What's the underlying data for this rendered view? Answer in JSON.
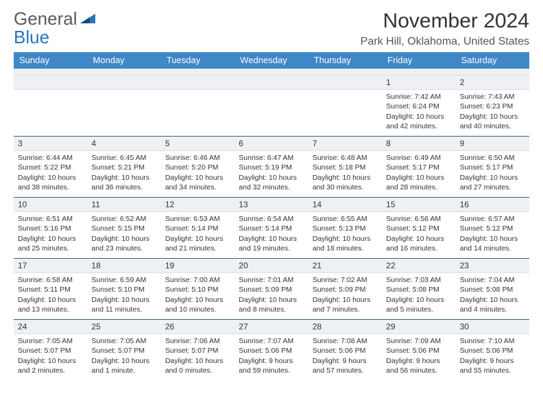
{
  "logo": {
    "line1": "General",
    "line2": "Blue"
  },
  "header": {
    "month_title": "November 2024",
    "location": "Park Hill, Oklahoma, United States"
  },
  "colors": {
    "headerBlue": "#3f87c7",
    "band": "#eef1f3",
    "text": "#333333",
    "logoBlue": "#2a74bd",
    "darkRule": "#3f5a77"
  },
  "dayNames": [
    "Sunday",
    "Monday",
    "Tuesday",
    "Wednesday",
    "Thursday",
    "Friday",
    "Saturday"
  ],
  "weeks": [
    [
      {
        "n": "",
        "sunrise": "",
        "sunset": "",
        "daylight": ""
      },
      {
        "n": "",
        "sunrise": "",
        "sunset": "",
        "daylight": ""
      },
      {
        "n": "",
        "sunrise": "",
        "sunset": "",
        "daylight": ""
      },
      {
        "n": "",
        "sunrise": "",
        "sunset": "",
        "daylight": ""
      },
      {
        "n": "",
        "sunrise": "",
        "sunset": "",
        "daylight": ""
      },
      {
        "n": "1",
        "sunrise": "Sunrise: 7:42 AM",
        "sunset": "Sunset: 6:24 PM",
        "daylight": "Daylight: 10 hours and 42 minutes."
      },
      {
        "n": "2",
        "sunrise": "Sunrise: 7:43 AM",
        "sunset": "Sunset: 6:23 PM",
        "daylight": "Daylight: 10 hours and 40 minutes."
      }
    ],
    [
      {
        "n": "3",
        "sunrise": "Sunrise: 6:44 AM",
        "sunset": "Sunset: 5:22 PM",
        "daylight": "Daylight: 10 hours and 38 minutes."
      },
      {
        "n": "4",
        "sunrise": "Sunrise: 6:45 AM",
        "sunset": "Sunset: 5:21 PM",
        "daylight": "Daylight: 10 hours and 36 minutes."
      },
      {
        "n": "5",
        "sunrise": "Sunrise: 6:46 AM",
        "sunset": "Sunset: 5:20 PM",
        "daylight": "Daylight: 10 hours and 34 minutes."
      },
      {
        "n": "6",
        "sunrise": "Sunrise: 6:47 AM",
        "sunset": "Sunset: 5:19 PM",
        "daylight": "Daylight: 10 hours and 32 minutes."
      },
      {
        "n": "7",
        "sunrise": "Sunrise: 6:48 AM",
        "sunset": "Sunset: 5:18 PM",
        "daylight": "Daylight: 10 hours and 30 minutes."
      },
      {
        "n": "8",
        "sunrise": "Sunrise: 6:49 AM",
        "sunset": "Sunset: 5:17 PM",
        "daylight": "Daylight: 10 hours and 28 minutes."
      },
      {
        "n": "9",
        "sunrise": "Sunrise: 6:50 AM",
        "sunset": "Sunset: 5:17 PM",
        "daylight": "Daylight: 10 hours and 27 minutes."
      }
    ],
    [
      {
        "n": "10",
        "sunrise": "Sunrise: 6:51 AM",
        "sunset": "Sunset: 5:16 PM",
        "daylight": "Daylight: 10 hours and 25 minutes."
      },
      {
        "n": "11",
        "sunrise": "Sunrise: 6:52 AM",
        "sunset": "Sunset: 5:15 PM",
        "daylight": "Daylight: 10 hours and 23 minutes."
      },
      {
        "n": "12",
        "sunrise": "Sunrise: 6:53 AM",
        "sunset": "Sunset: 5:14 PM",
        "daylight": "Daylight: 10 hours and 21 minutes."
      },
      {
        "n": "13",
        "sunrise": "Sunrise: 6:54 AM",
        "sunset": "Sunset: 5:14 PM",
        "daylight": "Daylight: 10 hours and 19 minutes."
      },
      {
        "n": "14",
        "sunrise": "Sunrise: 6:55 AM",
        "sunset": "Sunset: 5:13 PM",
        "daylight": "Daylight: 10 hours and 18 minutes."
      },
      {
        "n": "15",
        "sunrise": "Sunrise: 6:56 AM",
        "sunset": "Sunset: 5:12 PM",
        "daylight": "Daylight: 10 hours and 16 minutes."
      },
      {
        "n": "16",
        "sunrise": "Sunrise: 6:57 AM",
        "sunset": "Sunset: 5:12 PM",
        "daylight": "Daylight: 10 hours and 14 minutes."
      }
    ],
    [
      {
        "n": "17",
        "sunrise": "Sunrise: 6:58 AM",
        "sunset": "Sunset: 5:11 PM",
        "daylight": "Daylight: 10 hours and 13 minutes."
      },
      {
        "n": "18",
        "sunrise": "Sunrise: 6:59 AM",
        "sunset": "Sunset: 5:10 PM",
        "daylight": "Daylight: 10 hours and 11 minutes."
      },
      {
        "n": "19",
        "sunrise": "Sunrise: 7:00 AM",
        "sunset": "Sunset: 5:10 PM",
        "daylight": "Daylight: 10 hours and 10 minutes."
      },
      {
        "n": "20",
        "sunrise": "Sunrise: 7:01 AM",
        "sunset": "Sunset: 5:09 PM",
        "daylight": "Daylight: 10 hours and 8 minutes."
      },
      {
        "n": "21",
        "sunrise": "Sunrise: 7:02 AM",
        "sunset": "Sunset: 5:09 PM",
        "daylight": "Daylight: 10 hours and 7 minutes."
      },
      {
        "n": "22",
        "sunrise": "Sunrise: 7:03 AM",
        "sunset": "Sunset: 5:08 PM",
        "daylight": "Daylight: 10 hours and 5 minutes."
      },
      {
        "n": "23",
        "sunrise": "Sunrise: 7:04 AM",
        "sunset": "Sunset: 5:08 PM",
        "daylight": "Daylight: 10 hours and 4 minutes."
      }
    ],
    [
      {
        "n": "24",
        "sunrise": "Sunrise: 7:05 AM",
        "sunset": "Sunset: 5:07 PM",
        "daylight": "Daylight: 10 hours and 2 minutes."
      },
      {
        "n": "25",
        "sunrise": "Sunrise: 7:05 AM",
        "sunset": "Sunset: 5:07 PM",
        "daylight": "Daylight: 10 hours and 1 minute."
      },
      {
        "n": "26",
        "sunrise": "Sunrise: 7:06 AM",
        "sunset": "Sunset: 5:07 PM",
        "daylight": "Daylight: 10 hours and 0 minutes."
      },
      {
        "n": "27",
        "sunrise": "Sunrise: 7:07 AM",
        "sunset": "Sunset: 5:06 PM",
        "daylight": "Daylight: 9 hours and 59 minutes."
      },
      {
        "n": "28",
        "sunrise": "Sunrise: 7:08 AM",
        "sunset": "Sunset: 5:06 PM",
        "daylight": "Daylight: 9 hours and 57 minutes."
      },
      {
        "n": "29",
        "sunrise": "Sunrise: 7:09 AM",
        "sunset": "Sunset: 5:06 PM",
        "daylight": "Daylight: 9 hours and 56 minutes."
      },
      {
        "n": "30",
        "sunrise": "Sunrise: 7:10 AM",
        "sunset": "Sunset: 5:06 PM",
        "daylight": "Daylight: 9 hours and 55 minutes."
      }
    ]
  ]
}
